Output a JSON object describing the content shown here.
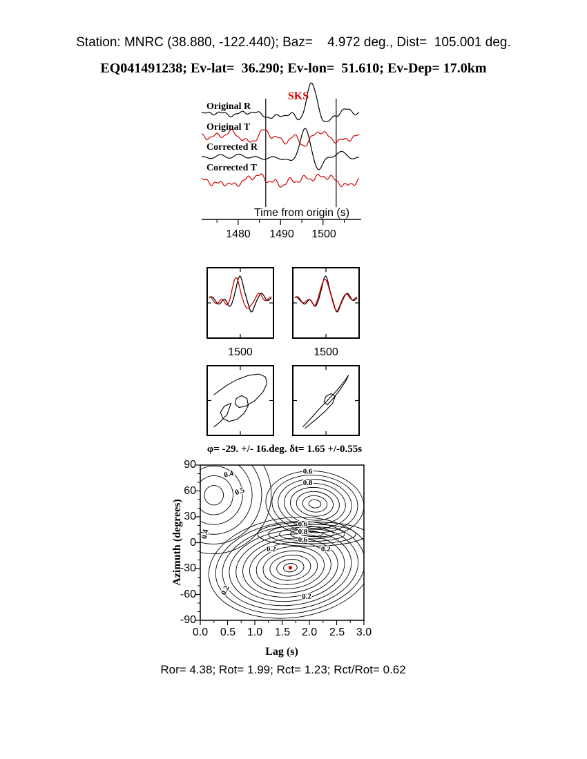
{
  "header": {
    "line1": "Station: MNRC (38.880, -122.440); Baz=    4.972 deg., Dist=  105.001 deg.",
    "line2": "EQ041491238; Ev-lat=  36.290; Ev-lon=  51.610; Ev-Dep= 17.0km"
  },
  "colors": {
    "red": "#d40000",
    "black": "#000000",
    "background": "#ffffff"
  },
  "footer": {
    "stats": "Ror= 4.38; Rot= 1.99; Rct= 1.23; Rct/Rot= 0.62"
  },
  "chart_data": [
    {
      "id": "waveform-panel",
      "type": "line",
      "phase_label": "SKS",
      "xlabel": "Time from origin (s)",
      "x_range": [
        1471.4,
        1508.5
      ],
      "xticks": [
        1480,
        1490,
        1500
      ],
      "xtick_labels": [
        "1480",
        "1490",
        "1500"
      ],
      "xticks_minor": [
        1475,
        1485,
        1495,
        1505
      ],
      "window_s": [
        1486.5,
        1503.1
      ],
      "traces": [
        {
          "name": "Original R",
          "color": "#000000",
          "base": 166,
          "sines": [
            {
              "f": 9,
              "a": 2.5,
              "p": 0.3
            },
            {
              "f": 19,
              "a": 1.2,
              "p": 1.7
            }
          ],
          "bumps": [
            {
              "c": 0.08,
              "w": 0.05,
              "a": 3
            },
            {
              "c": 0.3,
              "w": 0.05,
              "a": 4
            },
            {
              "c": 0.45,
              "w": 0.04,
              "a": -5
            },
            {
              "c": 0.62,
              "w": 0.03,
              "a": -7
            },
            {
              "c": 0.7,
              "w": 0.042,
              "a": 44
            },
            {
              "c": 0.79,
              "w": 0.035,
              "a": -14
            },
            {
              "c": 0.93,
              "w": 0.05,
              "a": 7
            }
          ]
        },
        {
          "name": "Original T",
          "color": "#d40000",
          "base": 198,
          "sines": [
            {
              "f": 10,
              "a": 3.5,
              "p": 2.1
            },
            {
              "f": 22,
              "a": 1.5,
              "p": 0.4
            }
          ],
          "bumps": [
            {
              "c": 0.18,
              "w": 0.05,
              "a": 6
            },
            {
              "c": 0.3,
              "w": 0.04,
              "a": -9
            },
            {
              "c": 0.4,
              "w": 0.04,
              "a": 8
            },
            {
              "c": 0.52,
              "w": 0.04,
              "a": -7
            },
            {
              "c": 0.66,
              "w": 0.045,
              "a": -12
            },
            {
              "c": 0.74,
              "w": 0.04,
              "a": 9
            },
            {
              "c": 0.88,
              "w": 0.05,
              "a": -7
            }
          ]
        },
        {
          "name": "Corrected R",
          "color": "#000000",
          "base": 229,
          "sines": [
            {
              "f": 9,
              "a": 2,
              "p": 1.1
            }
          ],
          "bumps": [
            {
              "c": 0.12,
              "w": 0.06,
              "a": 3
            },
            {
              "c": 0.25,
              "w": 0.05,
              "a": 4
            },
            {
              "c": 0.57,
              "w": 0.03,
              "a": -6
            },
            {
              "c": 0.655,
              "w": 0.042,
              "a": 42
            },
            {
              "c": 0.745,
              "w": 0.035,
              "a": -16
            },
            {
              "c": 0.88,
              "w": 0.05,
              "a": 8
            }
          ]
        },
        {
          "name": "Corrected T",
          "color": "#d40000",
          "base": 262,
          "sines": [
            {
              "f": 11,
              "a": 3.5,
              "p": 0.6
            },
            {
              "f": 23,
              "a": 1.8,
              "p": 2.3
            }
          ],
          "bumps": [
            {
              "c": 0.1,
              "w": 0.04,
              "a": -5
            },
            {
              "c": 0.2,
              "w": 0.04,
              "a": -7
            },
            {
              "c": 0.35,
              "w": 0.05,
              "a": 8
            },
            {
              "c": 0.5,
              "w": 0.04,
              "a": -6
            },
            {
              "c": 0.68,
              "w": 0.05,
              "a": 4
            },
            {
              "c": 0.78,
              "w": 0.05,
              "a": 7
            },
            {
              "c": 0.92,
              "w": 0.04,
              "a": -8
            }
          ]
        }
      ]
    },
    {
      "id": "windowed-waveforms",
      "type": "line",
      "boxes": [
        {
          "label": "1500",
          "series": [
            {
              "color": "#000000",
              "base": 45,
              "sines": [
                {
                  "f": 5,
                  "a": 3,
                  "p": 0.5
                }
              ],
              "bumps": [
                {
                  "c": 0.18,
                  "w": 0.07,
                  "a": -6
                },
                {
                  "c": 0.33,
                  "w": 0.06,
                  "a": -8
                },
                {
                  "c": 0.5,
                  "w": 0.07,
                  "a": 34
                },
                {
                  "c": 0.67,
                  "w": 0.06,
                  "a": -20
                },
                {
                  "c": 0.85,
                  "w": 0.06,
                  "a": 5
                }
              ]
            },
            {
              "color": "#d40000",
              "base": 45,
              "sines": [
                {
                  "f": 5,
                  "a": 3,
                  "p": 1.5
                }
              ],
              "bumps": [
                {
                  "c": 0.14,
                  "w": 0.07,
                  "a": -5
                },
                {
                  "c": 0.28,
                  "w": 0.06,
                  "a": -7
                },
                {
                  "c": 0.44,
                  "w": 0.08,
                  "a": 29
                },
                {
                  "c": 0.61,
                  "w": 0.07,
                  "a": -17
                },
                {
                  "c": 0.8,
                  "w": 0.06,
                  "a": 5
                }
              ]
            }
          ]
        },
        {
          "label": "1500",
          "series": [
            {
              "color": "#000000",
              "base": 45,
              "sines": [
                {
                  "f": 5,
                  "a": 3,
                  "p": 0.5
                }
              ],
              "bumps": [
                {
                  "c": 0.18,
                  "w": 0.07,
                  "a": -6
                },
                {
                  "c": 0.32,
                  "w": 0.06,
                  "a": -8
                },
                {
                  "c": 0.5,
                  "w": 0.07,
                  "a": 34
                },
                {
                  "c": 0.67,
                  "w": 0.06,
                  "a": -20
                },
                {
                  "c": 0.85,
                  "w": 0.06,
                  "a": 5
                }
              ]
            },
            {
              "color": "#d40000",
              "base": 45,
              "sines": [
                {
                  "f": 5,
                  "a": 2.5,
                  "p": 1.2
                }
              ],
              "bumps": [
                {
                  "c": 0.17,
                  "w": 0.07,
                  "a": -5
                },
                {
                  "c": 0.32,
                  "w": 0.06,
                  "a": -7
                },
                {
                  "c": 0.49,
                  "w": 0.08,
                  "a": 30
                },
                {
                  "c": 0.66,
                  "w": 0.07,
                  "a": -17
                },
                {
                  "c": 0.84,
                  "w": 0.06,
                  "a": 5
                }
              ]
            }
          ]
        }
      ]
    },
    {
      "id": "particle-motion",
      "type": "line",
      "boxes": [
        {
          "points": [
            [
              0.1,
              0.42
            ],
            [
              0.18,
              0.36
            ],
            [
              0.3,
              0.28
            ],
            [
              0.45,
              0.2
            ],
            [
              0.62,
              0.14
            ],
            [
              0.78,
              0.12
            ],
            [
              0.88,
              0.16
            ],
            [
              0.9,
              0.26
            ],
            [
              0.84,
              0.38
            ],
            [
              0.72,
              0.5
            ],
            [
              0.58,
              0.58
            ],
            [
              0.48,
              0.6
            ],
            [
              0.42,
              0.55
            ],
            [
              0.44,
              0.47
            ],
            [
              0.52,
              0.43
            ],
            [
              0.6,
              0.47
            ],
            [
              0.62,
              0.57
            ],
            [
              0.56,
              0.68
            ],
            [
              0.45,
              0.77
            ],
            [
              0.33,
              0.8
            ],
            [
              0.24,
              0.76
            ],
            [
              0.2,
              0.67
            ],
            [
              0.26,
              0.58
            ],
            [
              0.36,
              0.54
            ],
            [
              0.3,
              0.7
            ],
            [
              0.18,
              0.82
            ],
            [
              0.1,
              0.88
            ]
          ]
        },
        {
          "points": [
            [
              0.15,
              0.88
            ],
            [
              0.25,
              0.78
            ],
            [
              0.38,
              0.64
            ],
            [
              0.52,
              0.5
            ],
            [
              0.66,
              0.36
            ],
            [
              0.78,
              0.22
            ],
            [
              0.84,
              0.14
            ],
            [
              0.8,
              0.22
            ],
            [
              0.7,
              0.36
            ],
            [
              0.6,
              0.48
            ],
            [
              0.52,
              0.56
            ],
            [
              0.47,
              0.52
            ],
            [
              0.5,
              0.44
            ],
            [
              0.58,
              0.4
            ],
            [
              0.64,
              0.44
            ],
            [
              0.6,
              0.54
            ],
            [
              0.48,
              0.66
            ],
            [
              0.36,
              0.76
            ],
            [
              0.26,
              0.84
            ],
            [
              0.18,
              0.9
            ]
          ]
        }
      ]
    },
    {
      "id": "error-surface",
      "type": "contour",
      "title": "φ= -29. +/- 16.deg. δt= 1.65 +/-0.55s",
      "xlabel": "Lag (s)",
      "ylabel": "Azimuth (degrees)",
      "xlim": [
        0,
        3
      ],
      "ylim": [
        -90,
        90
      ],
      "xticks": [
        "0.0",
        "0.5",
        "1.0",
        "1.5",
        "2.0",
        "2.5",
        "3.0"
      ],
      "yticks": [
        "90",
        "60",
        "30",
        "0",
        "-30",
        "-60",
        "-90"
      ],
      "phi_deg": -29,
      "phi_err_deg": 16,
      "dt_s": 1.65,
      "dt_err_s": 0.55,
      "best_fit": {
        "lag": 1.65,
        "azimuth": -29
      },
      "groups": [
        {
          "cx": 1.65,
          "cy": -29,
          "rxmax": 1.5,
          "rymax": 58,
          "n": 12,
          "rot": -7
        },
        {
          "cx": 2.1,
          "cy": 45,
          "rxmax": 0.9,
          "rymax": 38,
          "n": 8,
          "rot": 5
        },
        {
          "cx": 0.25,
          "cy": 55,
          "rxmax": 1.05,
          "rymax": 68,
          "n": 6,
          "rot": 12
        },
        {
          "cx": 2.05,
          "cy": 10,
          "rxmax": 1.0,
          "rymax": 14,
          "n": 5,
          "rot": 0
        }
      ],
      "labels": [
        {
          "t": "0.4",
          "x": 0.52,
          "y": 80,
          "rot": -15
        },
        {
          "t": "0.5",
          "x": 0.72,
          "y": 60,
          "rot": -20
        },
        {
          "t": "0.6",
          "x": 1.97,
          "y": 83,
          "rot": 0
        },
        {
          "t": "0.8",
          "x": 1.97,
          "y": 70,
          "rot": 0
        },
        {
          "t": "0.4",
          "x": 0.08,
          "y": 10,
          "rot": -80
        },
        {
          "t": "0.6",
          "x": 1.88,
          "y": 22,
          "rot": 0
        },
        {
          "t": "0.8",
          "x": 1.88,
          "y": 13,
          "rot": 0
        },
        {
          "t": "0.6",
          "x": 1.88,
          "y": 4,
          "rot": 0
        },
        {
          "t": "0.2",
          "x": 1.3,
          "y": -7,
          "rot": 0
        },
        {
          "t": "0.2",
          "x": 2.3,
          "y": -7,
          "rot": 0
        },
        {
          "t": "0.2",
          "x": 0.45,
          "y": -55,
          "rot": -65
        },
        {
          "t": "0.2",
          "x": 1.95,
          "y": -62,
          "rot": -5
        }
      ]
    }
  ]
}
